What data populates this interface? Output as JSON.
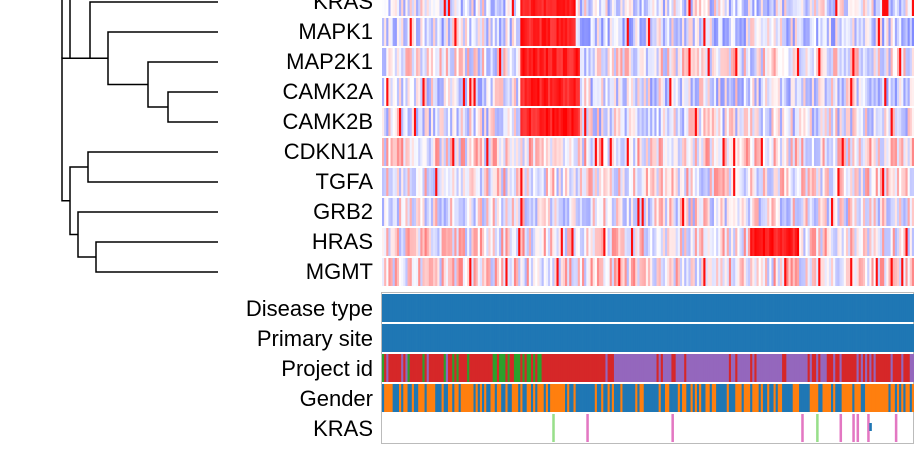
{
  "chart_data": {
    "type": "heatmap",
    "genes": [
      "KRAS",
      "MAPK1",
      "MAP2K1",
      "CAMK2A",
      "CAMK2B",
      "CDKN1A",
      "TGFA",
      "GRB2",
      "HRAS",
      "MGMT"
    ],
    "annotation_tracks": [
      "Disease type",
      "Primary site",
      "Project id",
      "Gender",
      "KRAS"
    ],
    "colormap": {
      "low": "#3b4cff",
      "mid": "#ffffff",
      "high": "#ff0000"
    },
    "dendrogram": "hierarchical clustering of genes (left)",
    "high_expression_blocks": [
      {
        "genes": [
          "MAP2K1",
          "CAMK2A",
          "CAMK2B"
        ],
        "sample_fraction": [
          0.26,
          0.37
        ]
      },
      {
        "genes": [
          "KRAS",
          "MAPK1"
        ],
        "sample_fraction": [
          0.26,
          0.36
        ]
      },
      {
        "genes": [
          "HRAS"
        ],
        "sample_fraction": [
          0.69,
          0.78
        ]
      }
    ],
    "annotation_colors": {
      "Disease type": [
        "#1f77b4"
      ],
      "Primary site": [
        "#1f77b4"
      ],
      "Project id": [
        "#d62728",
        "#2ca02c",
        "#9467bd",
        "#1f77b4",
        "#ff7f0e"
      ],
      "Gender": [
        "#1f77b4",
        "#ff7f0e"
      ],
      "KRAS": [
        "#e377c2",
        "#98df8a",
        "#1f77b4",
        "#2ca02c"
      ]
    }
  }
}
